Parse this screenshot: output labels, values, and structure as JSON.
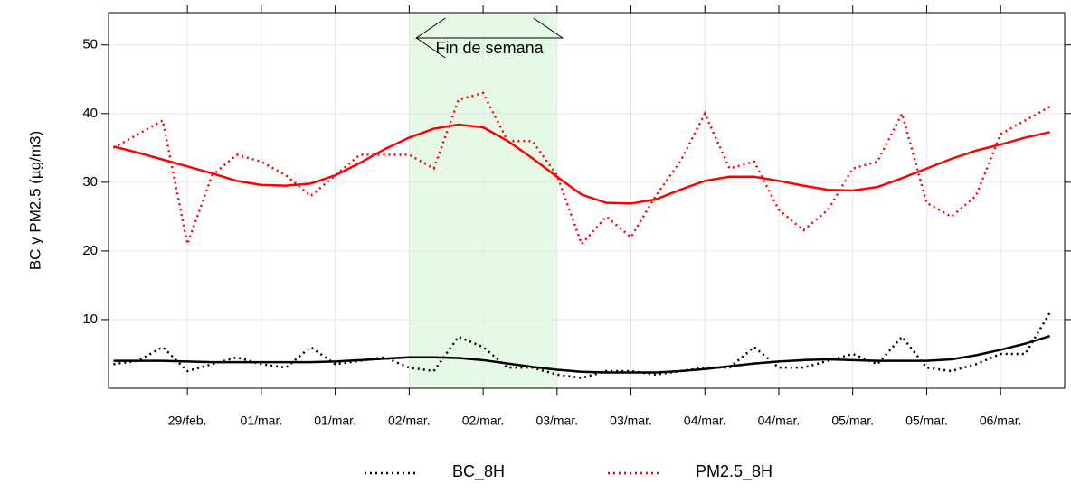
{
  "chart_data": {
    "type": "line",
    "ylabel": "BC y PM2.5 (µg/m3)",
    "annotation": "Fin de semana",
    "shade": [
      36,
      60
    ],
    "shade_color": "#e6f9e6",
    "x": [
      -12,
      -8,
      -4,
      0,
      4,
      8,
      12,
      16,
      20,
      24,
      28,
      32,
      36,
      40,
      44,
      48,
      52,
      56,
      60,
      64,
      68,
      72,
      76,
      80,
      84,
      88,
      92,
      96,
      100,
      104,
      108,
      112,
      116,
      120,
      124,
      128,
      132,
      136,
      140
    ],
    "series": [
      {
        "name": "BC_8H",
        "color": "#000000",
        "values": [
          3.5,
          4,
          6,
          2.5,
          3.5,
          4.5,
          3.5,
          3,
          6,
          3.5,
          4,
          4.5,
          3,
          2.5,
          7.5,
          6,
          3,
          3,
          2,
          1.5,
          2.5,
          2.5,
          2,
          2.5,
          3,
          3,
          6,
          3,
          3,
          4,
          5,
          3.5,
          7.5,
          3,
          2.5,
          3.5,
          5,
          5,
          11
        ]
      },
      {
        "name": "PM2.5_8H",
        "color": "#ff0000",
        "values": [
          35,
          37,
          39,
          21,
          31,
          34,
          33,
          31,
          28,
          31,
          34,
          34,
          34,
          32,
          42,
          43,
          36,
          36,
          31,
          21,
          25,
          22,
          28,
          33,
          40,
          32,
          33,
          26,
          23,
          26,
          32,
          33,
          40,
          27,
          25,
          28,
          37,
          39,
          41
        ]
      }
    ],
    "trend_series": [
      {
        "color": "#000000",
        "values": [
          4,
          4,
          4,
          3.9,
          3.8,
          3.8,
          3.8,
          3.8,
          3.8,
          3.9,
          4.1,
          4.3,
          4.5,
          4.5,
          4.4,
          4.1,
          3.6,
          3.1,
          2.7,
          2.4,
          2.3,
          2.3,
          2.3,
          2.5,
          2.8,
          3.2,
          3.6,
          3.9,
          4.1,
          4.2,
          4.1,
          4,
          4,
          4,
          4.2,
          4.8,
          5.6,
          6.5,
          7.6
        ]
      },
      {
        "color": "#ff0000",
        "values": [
          35.2,
          34.3,
          33.3,
          32.3,
          31.3,
          30.2,
          29.6,
          29.5,
          29.8,
          31,
          32.8,
          34.8,
          36.5,
          37.8,
          38.4,
          38,
          36,
          33.5,
          30.8,
          28.2,
          27,
          26.9,
          27.5,
          28.9,
          30.2,
          30.8,
          30.8,
          30.2,
          29.5,
          28.9,
          28.8,
          29.3,
          30.6,
          32,
          33.4,
          34.6,
          35.5,
          36.5,
          37.3
        ]
      }
    ],
    "xlim": [
      -12.8,
      142.4
    ],
    "xticks": [
      {
        "value": 0,
        "label": "29/feb."
      },
      {
        "value": 12,
        "label": "01/mar."
      },
      {
        "value": 24,
        "label": "01/mar."
      },
      {
        "value": 36,
        "label": "02/mar."
      },
      {
        "value": 48,
        "label": "02/mar."
      },
      {
        "value": 60,
        "label": "03/mar."
      },
      {
        "value": 72,
        "label": "03/mar."
      },
      {
        "value": 84,
        "label": "04/mar."
      },
      {
        "value": 96,
        "label": "04/mar."
      },
      {
        "value": 108,
        "label": "05/mar."
      },
      {
        "value": 120,
        "label": "05/mar."
      },
      {
        "value": 132,
        "label": "06/mar."
      }
    ],
    "ylim": [
      0,
      54.7
    ],
    "yticks": [
      10,
      20,
      30,
      40,
      50
    ],
    "grid": true
  }
}
